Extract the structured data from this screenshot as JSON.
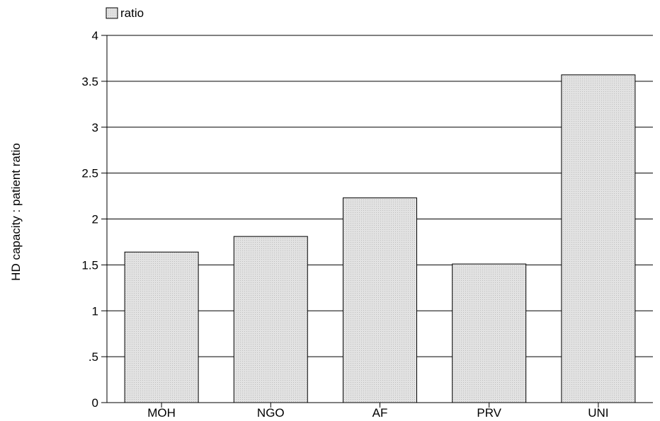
{
  "chart_data": {
    "type": "bar",
    "categories": [
      "MOH",
      "NGO",
      "AF",
      "PRV",
      "UNI"
    ],
    "series": [
      {
        "name": "ratio",
        "values": [
          1.64,
          1.81,
          2.23,
          1.51,
          3.57
        ]
      }
    ],
    "ylabel": "HD capacity : patient ratio",
    "xlabel": "",
    "ylim": [
      0,
      4
    ],
    "yticks": [
      0,
      0.5,
      1,
      1.5,
      2,
      2.5,
      3,
      3.5,
      4
    ],
    "ytick_labels": [
      "0",
      ".5",
      "1",
      "1.5",
      "2",
      "2.5",
      "3",
      "3.5",
      "4"
    ],
    "grid": true,
    "legend_position": "top-left",
    "bar_color": "#dcdcdc"
  }
}
